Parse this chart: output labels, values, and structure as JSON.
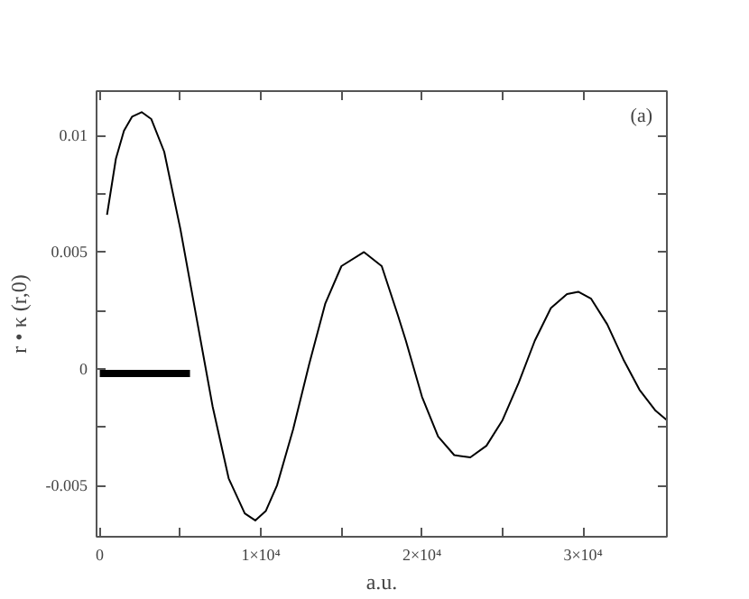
{
  "chart_data": {
    "type": "line",
    "xlabel": "a.u.",
    "ylabel": "r • κ (r,0)",
    "annotations": [
      "(a)"
    ],
    "xlim": [
      -200,
      35200
    ],
    "ylim": [
      -0.0072,
      0.0119
    ],
    "xticks": [
      0,
      {
        "value": 5000,
        "label": null
      },
      {
        "value": 10000,
        "label": "1×10⁴"
      },
      {
        "value": 15000,
        "label": null
      },
      {
        "value": 20000,
        "label": "2×10⁴"
      },
      {
        "value": 25000,
        "label": null
      },
      {
        "value": 30000,
        "label": "3×10⁴"
      }
    ],
    "yticks": [
      -0.005,
      {
        "value": -0.0025,
        "label": null
      },
      0,
      {
        "value": 0.0025,
        "label": null
      },
      0.005,
      {
        "value": 0.0075,
        "label": null
      },
      0.01
    ],
    "line_style": "solid",
    "series": [
      {
        "color": "#000000",
        "x": [
          450,
          1000,
          1500,
          2000,
          2600,
          3200,
          4000,
          5000,
          6000,
          6500,
          7000,
          8000,
          9000,
          9650,
          10300,
          11000,
          12000,
          13000,
          14000,
          15000,
          16400,
          17500,
          18500,
          19000,
          20000,
          21000,
          22000,
          23000,
          24000,
          25000,
          26000,
          27000,
          28000,
          29000,
          29700,
          30500,
          31500,
          32500,
          33500,
          34500,
          35200
        ],
        "values": [
          0.0066,
          0.009,
          0.0102,
          0.0108,
          0.011,
          0.0107,
          0.0093,
          0.006,
          0.0022,
          0.0003,
          -0.0016,
          -0.0047,
          -0.0062,
          -0.0065,
          -0.0061,
          -0.005,
          -0.0026,
          0.0002,
          0.0028,
          0.0044,
          0.005,
          0.0044,
          0.0023,
          0.0012,
          -0.0012,
          -0.0029,
          -0.0037,
          -0.0038,
          -0.0033,
          -0.0022,
          -0.0006,
          0.0012,
          0.0026,
          0.0032,
          0.0033,
          0.003,
          0.0019,
          0.0004,
          -0.0009,
          -0.0018,
          -0.0022
        ]
      },
      {
        "color": "#000000",
        "x": [
          0,
          5600
        ],
        "values": [
          -0.0002,
          -0.0002
        ]
      }
    ]
  }
}
